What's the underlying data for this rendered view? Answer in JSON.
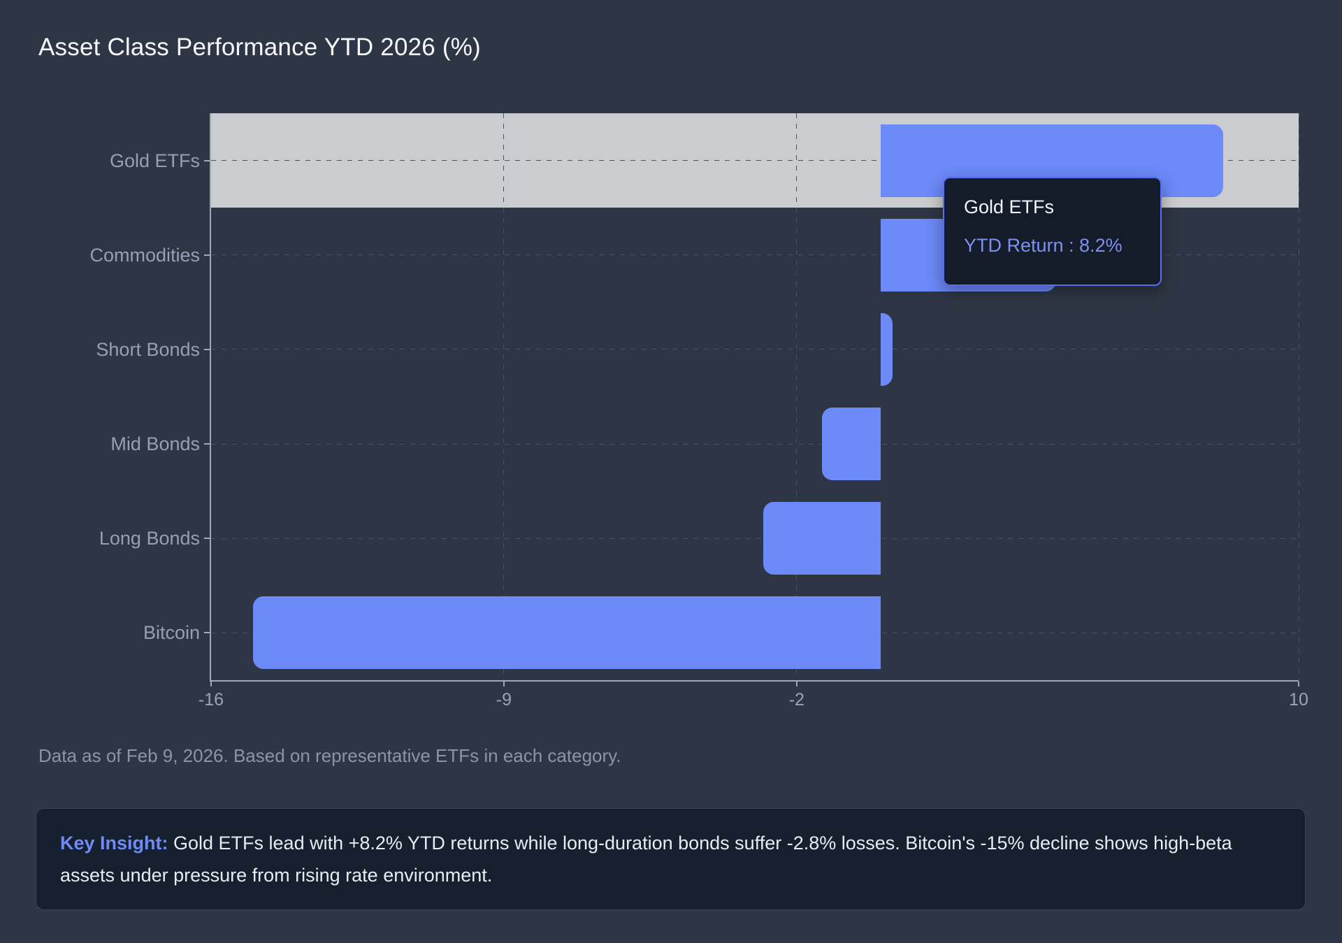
{
  "title": "Asset Class Performance YTD 2026 (%)",
  "footnote": "Data as of Feb 9, 2026. Based on representative ETFs in each category.",
  "insight": {
    "label": "Key Insight:",
    "text": " Gold ETFs lead with +8.2% YTD returns while long-duration bonds suffer -2.8% losses. Bitcoin's -15% decline shows high-beta assets under pressure from rising rate environment."
  },
  "tooltip": {
    "title": "Gold ETFs",
    "value_label": "YTD Return : 8.2%"
  },
  "chart_data": {
    "type": "bar",
    "orientation": "horizontal",
    "title": "Asset Class Performance YTD 2026 (%)",
    "categories": [
      "Gold ETFs",
      "Commodities",
      "Short Bonds",
      "Mid Bonds",
      "Long Bonds",
      "Bitcoin"
    ],
    "series": [
      {
        "name": "YTD Return",
        "values": [
          8.2,
          4.2,
          0.3,
          -1.4,
          -2.8,
          -15
        ]
      }
    ],
    "xlim": [
      -16,
      10
    ],
    "x_ticks": [
      -16,
      -9,
      -2,
      10
    ],
    "grid": true,
    "grid_style": "dashed",
    "legend": false,
    "highlighted_index": 0,
    "hovered_category": "Gold ETFs",
    "hovered_value": "8.2%",
    "xlabel": "",
    "ylabel": ""
  },
  "colors": {
    "background": "#2e3645",
    "bar": "#6c8af8",
    "highlight_band": "#cbcccf",
    "axis": "#9fa9b8",
    "grid": "#475266",
    "tick_label": "#9aa5b6",
    "category_label": "#93a0b5",
    "title": "#f6f8fb",
    "footnote": "#8995a9",
    "tooltip_bg": "#141b29",
    "tooltip_border": "#5b6bf2",
    "tooltip_value": "#7e90f4",
    "insight_bg": "#161f2e",
    "insight_border": "#39435a",
    "insight_accent": "#6e8bf7",
    "insight_text": "#e7ecf3"
  }
}
